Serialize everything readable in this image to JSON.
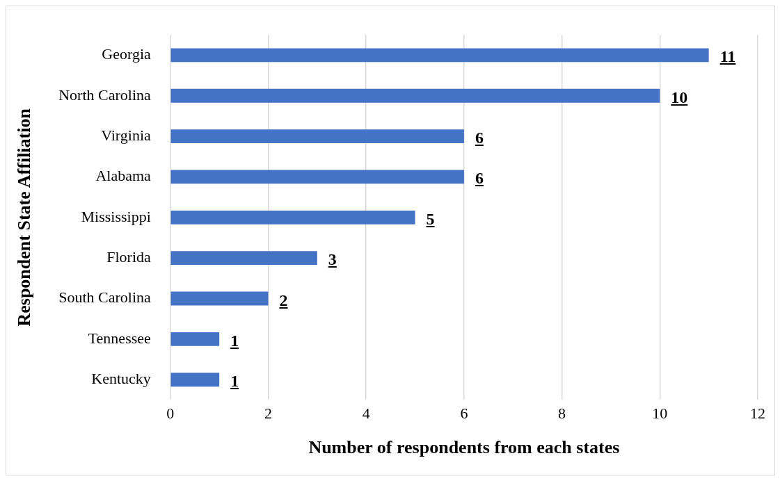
{
  "chart_data": {
    "type": "bar",
    "orientation": "horizontal",
    "categories": [
      "Georgia",
      "North Carolina",
      "Virginia",
      "Alabama",
      "Mississippi",
      "Florida",
      "South Carolina",
      "Tennessee",
      "Kentucky"
    ],
    "values": [
      11,
      10,
      6,
      6,
      5,
      3,
      2,
      1,
      1
    ],
    "color": "#4472c4",
    "xlabel": "Number of respondents from each states",
    "ylabel": "Respondent State Affiliation",
    "xlim": [
      0,
      12
    ],
    "xticks": [
      0,
      2,
      4,
      6,
      8,
      10,
      12
    ],
    "grid": "x",
    "data_labels": true,
    "legend": false
  }
}
